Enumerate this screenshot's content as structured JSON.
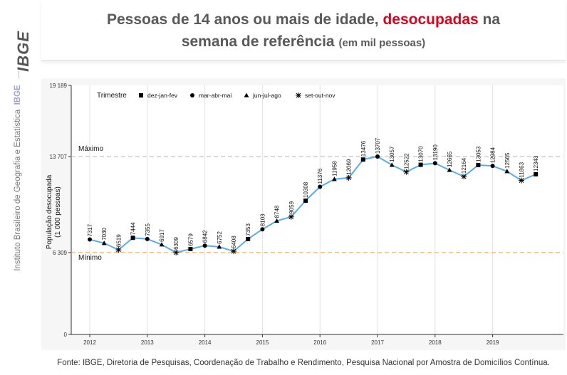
{
  "sidebar": {
    "logo_text": "IBGE",
    "institution_name": "Instituto Brasileiro de Geografia e Estatística",
    "institution_abbr": "IBGE"
  },
  "header": {
    "title_part1": "Pessoas de 14 anos ou mais de idade, ",
    "title_highlight": "desocupadas",
    "title_part2": " na",
    "title_line2": "semana de referência",
    "title_unit": "(em mil pessoas)"
  },
  "colors": {
    "line": "#5aace8",
    "highlight": "#e0001b",
    "max_line": "#b5b5b5",
    "min_line": "#f0a030"
  },
  "chart_data": {
    "type": "line",
    "ylabel": "População desocupada\n(1 000 pessoas)",
    "ylim": [
      0,
      19189
    ],
    "y_ticks": [
      {
        "value": 0,
        "label": "0"
      },
      {
        "value": 6309,
        "label": "6 309"
      },
      {
        "value": 13707,
        "label": "13 707"
      },
      {
        "value": 19189,
        "label": "19 189"
      }
    ],
    "x_ticks": [
      "2012",
      "2013",
      "2014",
      "2015",
      "2016",
      "2017",
      "2018",
      "2019"
    ],
    "legend": {
      "title": "Trimestre",
      "position": "top-left",
      "entries": [
        {
          "label": "dez-jan-fev",
          "marker": "square"
        },
        {
          "label": "mar-abr-mai",
          "marker": "circle"
        },
        {
          "label": "jun-jul-ago",
          "marker": "triangle"
        },
        {
          "label": "set-out-nov",
          "marker": "asterisk"
        }
      ]
    },
    "reference_lines": [
      {
        "name": "Máximo",
        "value": 13707
      },
      {
        "name": "Mínimo",
        "value": 6309
      }
    ],
    "series": [
      {
        "values": [
          7317,
          7030,
          6519,
          7444,
          7355,
          6917,
          6309,
          6579,
          6842,
          6752,
          6408,
          7353,
          8103,
          8748,
          9059,
          10308,
          11376,
          11958,
          12069,
          13476,
          13707,
          13057,
          12522,
          13070,
          13190,
          12665,
          12164,
          13053,
          12984,
          12565,
          11863,
          12343
        ],
        "labels": [
          "7317",
          "7030",
          "6519",
          "7444",
          "7355",
          "6917",
          "6309",
          "6579",
          "6842",
          "6752",
          "6408",
          "7353",
          "8103",
          "8748",
          "9059",
          "10308",
          "11376",
          "11958",
          "12069",
          "13476",
          "13707",
          "13057",
          "12522",
          "13070",
          "13190",
          "12665",
          "12164",
          "13053",
          "12984",
          "12565",
          "11863",
          "12343"
        ],
        "markers": [
          "circle",
          "triangle",
          "asterisk",
          "square",
          "circle",
          "triangle",
          "asterisk",
          "square",
          "circle",
          "triangle",
          "asterisk",
          "square",
          "circle",
          "triangle",
          "asterisk",
          "square",
          "circle",
          "triangle",
          "asterisk",
          "square",
          "circle",
          "triangle",
          "asterisk",
          "square",
          "circle",
          "triangle",
          "asterisk",
          "square",
          "circle",
          "triangle",
          "asterisk",
          "square"
        ]
      }
    ],
    "grid": true
  },
  "footer": {
    "source": "Fonte: IBGE, Diretoria de Pesquisas, Coordenação de Trabalho e Rendimento, Pesquisa Nacional por Amostra de Domicílios Contínua."
  }
}
